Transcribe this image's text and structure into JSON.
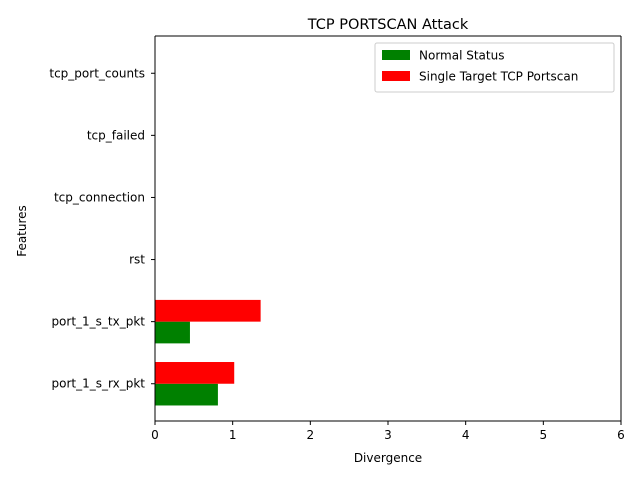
{
  "chart_data": {
    "type": "bar",
    "orientation": "horizontal",
    "title": "TCP PORTSCAN Attack",
    "xlabel": "Divergence",
    "ylabel": "Features",
    "xlim": [
      0,
      6
    ],
    "xticks": [
      "0",
      "1",
      "2",
      "3",
      "4",
      "5",
      "6"
    ],
    "categories": [
      "port_1_s_rx_pkt",
      "port_1_s_tx_pkt",
      "rst",
      "tcp_connection",
      "tcp_failed",
      "tcp_port_counts"
    ],
    "series": [
      {
        "name": "Normal Status",
        "color": "#008000",
        "values": [
          0.81,
          0.45,
          0,
          0,
          0,
          0
        ]
      },
      {
        "name": "Single Target TCP Portscan",
        "color": "#ff0000",
        "values": [
          1.02,
          1.36,
          0,
          0,
          0,
          0
        ]
      }
    ],
    "legend_position": "upper right",
    "grid": false
  }
}
